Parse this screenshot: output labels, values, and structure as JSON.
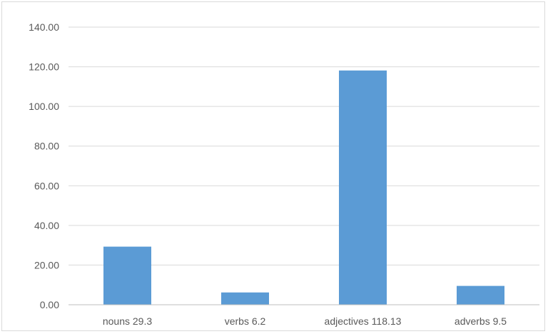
{
  "chart_data": {
    "type": "bar",
    "categories": [
      "nouns 29.3",
      "verbs 6.2",
      "adjectives 118.13",
      "adverbs 9.5"
    ],
    "values": [
      29.3,
      6.2,
      118.13,
      9.5
    ],
    "title": "",
    "xlabel": "",
    "ylabel": "",
    "ylim": [
      0,
      140
    ],
    "yticks": [
      "0.00",
      "20.00",
      "40.00",
      "60.00",
      "80.00",
      "100.00",
      "120.00",
      "140.00"
    ],
    "grid": true,
    "bar_color": "#5b9bd5",
    "gridline_color": "#d9d9d9"
  }
}
